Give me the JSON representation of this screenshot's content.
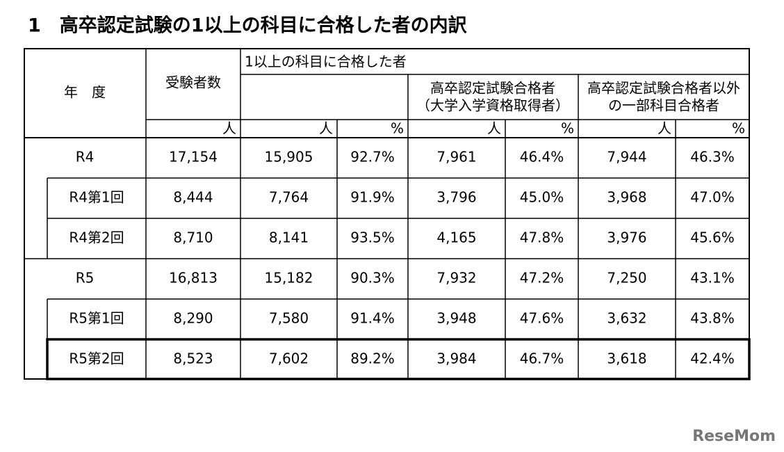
{
  "title": "1　高卒認定試験の1以上の科目に合格した者の内訳",
  "header": {
    "year": "年　度",
    "examinees": "受験者数",
    "passed_any": "1以上の科目に合格した者",
    "full_pass": [
      "高卒認定試験合格者",
      "（大学入学資格取得者）"
    ],
    "partial_pass": [
      "高卒認定試験合格者以外",
      "の一部科目合格者"
    ],
    "units": [
      "人",
      "人",
      "%",
      "人",
      "%",
      "人",
      "%"
    ]
  },
  "rows": [
    [
      "R4",
      "17,154",
      "15,905",
      "92.7%",
      "7,961",
      "46.4%",
      "7,944",
      "46.3%"
    ],
    [
      "R4第1回",
      "8,444",
      "7,764",
      "91.9%",
      "3,796",
      "45.0%",
      "3,968",
      "47.0%"
    ],
    [
      "R4第2回",
      "8,710",
      "8,141",
      "93.5%",
      "4,165",
      "47.8%",
      "3,976",
      "45.6%"
    ],
    [
      "R5",
      "16,813",
      "15,182",
      "90.3%",
      "7,932",
      "47.2%",
      "7,250",
      "43.1%"
    ],
    [
      "R5第1回",
      "8,290",
      "7,580",
      "91.4%",
      "3,948",
      "47.6%",
      "3,632",
      "43.8%"
    ],
    [
      "R5第2回",
      "8,523",
      "7,602",
      "89.2%",
      "3,984",
      "46.7%",
      "3,618",
      "42.4%"
    ]
  ],
  "logo": "ReseMom"
}
